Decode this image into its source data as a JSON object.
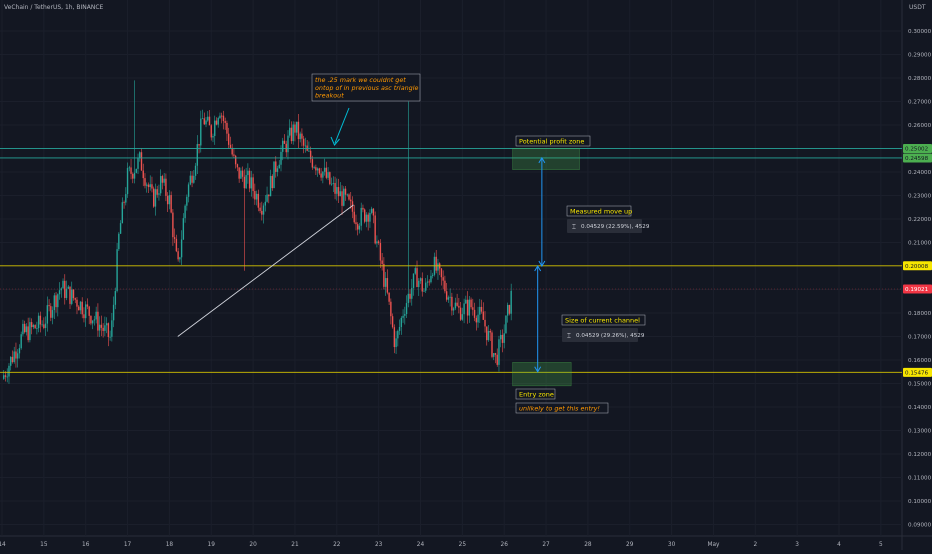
{
  "header": {
    "symbol_title": "VeChain / TetherUS, 1h, BINANCE"
  },
  "currency_label": "USDT",
  "chart_data": {
    "type": "candlestick",
    "ylim": [
      0.088,
      0.308
    ],
    "y_ticks": [
      "0.30000",
      "0.29000",
      "0.28000",
      "0.27000",
      "0.26000",
      "0.25000",
      "0.24000",
      "0.23000",
      "0.22000",
      "0.21000",
      "0.20000",
      "0.19000",
      "0.18000",
      "0.17000",
      "0.16000",
      "0.15000",
      "0.14000",
      "0.13000",
      "0.12000",
      "0.11000",
      "0.10000",
      "0.09000"
    ],
    "x_ticks": [
      {
        "label": "14",
        "day": 14
      },
      {
        "label": "15",
        "day": 15
      },
      {
        "label": "16",
        "day": 16
      },
      {
        "label": "17",
        "day": 17
      },
      {
        "label": "18",
        "day": 18
      },
      {
        "label": "19",
        "day": 19
      },
      {
        "label": "20",
        "day": 20
      },
      {
        "label": "21",
        "day": 21
      },
      {
        "label": "22",
        "day": 22
      },
      {
        "label": "23",
        "day": 23
      },
      {
        "label": "24",
        "day": 24
      },
      {
        "label": "25",
        "day": 25
      },
      {
        "label": "26",
        "day": 26
      },
      {
        "label": "27",
        "day": 27
      },
      {
        "label": "28",
        "day": 28
      },
      {
        "label": "29",
        "day": 29
      },
      {
        "label": "30",
        "day": 30
      },
      {
        "label": "May",
        "day": 31
      },
      {
        "label": "2",
        "day": 32
      },
      {
        "label": "3",
        "day": 33
      },
      {
        "label": "4",
        "day": 34
      },
      {
        "label": "5",
        "day": 35
      }
    ],
    "price_path": [
      [
        14.0,
        0.152
      ],
      [
        14.5,
        0.171
      ],
      [
        15.0,
        0.176
      ],
      [
        15.4,
        0.191
      ],
      [
        15.8,
        0.185
      ],
      [
        16.2,
        0.178
      ],
      [
        16.6,
        0.169
      ],
      [
        16.8,
        0.214
      ],
      [
        17.0,
        0.238
      ],
      [
        17.3,
        0.245
      ],
      [
        17.6,
        0.228
      ],
      [
        17.8,
        0.236
      ],
      [
        18.0,
        0.228
      ],
      [
        18.2,
        0.198
      ],
      [
        18.4,
        0.23
      ],
      [
        18.6,
        0.244
      ],
      [
        18.8,
        0.263
      ],
      [
        19.0,
        0.257
      ],
      [
        19.2,
        0.268
      ],
      [
        19.4,
        0.255
      ],
      [
        19.6,
        0.24
      ],
      [
        19.9,
        0.236
      ],
      [
        20.2,
        0.226
      ],
      [
        20.4,
        0.234
      ],
      [
        20.6,
        0.246
      ],
      [
        20.8,
        0.252
      ],
      [
        21.0,
        0.259
      ],
      [
        21.3,
        0.247
      ],
      [
        21.6,
        0.242
      ],
      [
        21.9,
        0.233
      ],
      [
        22.2,
        0.228
      ],
      [
        22.5,
        0.22
      ],
      [
        22.8,
        0.224
      ],
      [
        23.0,
        0.206
      ],
      [
        23.2,
        0.188
      ],
      [
        23.4,
        0.166
      ],
      [
        23.6,
        0.182
      ],
      [
        23.9,
        0.196
      ],
      [
        24.1,
        0.189
      ],
      [
        24.3,
        0.201
      ],
      [
        24.6,
        0.19
      ],
      [
        24.9,
        0.181
      ],
      [
        25.2,
        0.183
      ],
      [
        25.5,
        0.177
      ],
      [
        25.8,
        0.16
      ],
      [
        26.0,
        0.172
      ],
      [
        26.2,
        0.19
      ]
    ],
    "horizontal_levels": [
      {
        "price": 0.25002,
        "label": "0.25002",
        "color": "#4caf50",
        "line": "#26a69a"
      },
      {
        "price": 0.24598,
        "label": "0.24598",
        "color": "#4caf50",
        "line": "#26a69a"
      },
      {
        "price": 0.20008,
        "label": "0.20008",
        "color": "#f7e600",
        "line": "#d4c400"
      },
      {
        "price": 0.19021,
        "label": "0.19021",
        "color": "#f23645",
        "line": null
      },
      {
        "price": 0.15476,
        "label": "0.15476",
        "color": "#f7e600",
        "line": "#d4c400"
      }
    ],
    "trendline": {
      "from": [
        18.2,
        0.17
      ],
      "to": [
        22.4,
        0.226
      ]
    },
    "zones": [
      {
        "name": "potential-profit-zone",
        "x": [
          26.2,
          27.8
        ],
        "y": [
          0.241,
          0.25
        ],
        "label": "Potential profit zone"
      },
      {
        "name": "entry-zone",
        "x": [
          26.2,
          27.6
        ],
        "y": [
          0.149,
          0.159
        ],
        "label": "Entry zone"
      }
    ],
    "measures": [
      {
        "name": "measured-move-up",
        "x": 26.9,
        "y": [
          0.2,
          0.246
        ],
        "label": "Measured move up",
        "readout": "0.04529 (22.59%), 4529"
      },
      {
        "name": "size-of-current-channel",
        "x": 26.8,
        "y": [
          0.155,
          0.2
        ],
        "label": "Size of current channel",
        "readout": "0.04529 (29.26%), 4529"
      }
    ],
    "callouts": [
      {
        "name": "annotation-25-mark",
        "lines": [
          "the .25 mark we couldnt get",
          "ontop of in previous asc triangle",
          "breakout"
        ],
        "color": "#ff9800"
      },
      {
        "name": "annotation-unlikely-entry",
        "lines": [
          "unlikely to get this entry!"
        ],
        "color": "#ff9800"
      }
    ]
  }
}
